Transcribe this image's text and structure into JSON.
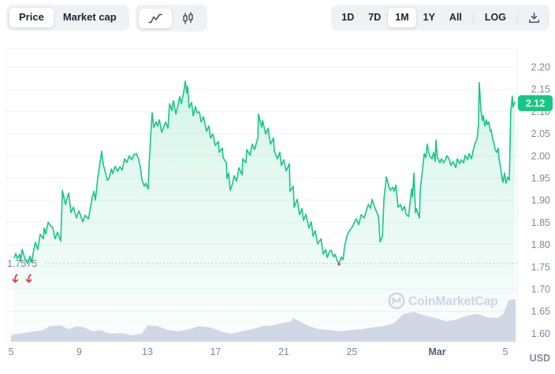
{
  "toolbar": {
    "metric_toggle": {
      "options": [
        "Price",
        "Market cap"
      ],
      "selected": "Price"
    },
    "chart_type_toggle": {
      "options": [
        "line",
        "candlestick"
      ],
      "selected": "line",
      "icons": [
        "line-chart-icon",
        "candlestick-icon"
      ]
    },
    "range_toggle": {
      "options": [
        "1D",
        "7D",
        "1M",
        "1Y",
        "All"
      ],
      "selected": "1M",
      "log_label": "LOG",
      "download_icon": "download-icon"
    }
  },
  "watermark": {
    "text": "CoinMarketCap",
    "logo": "coinmarketcap-logo"
  },
  "chart_data": {
    "type": "line",
    "unit_label": "USD",
    "last_price": "2.12",
    "min_annotation": {
      "label": "1.7575",
      "value": 1.7575
    },
    "y_axis": {
      "min": 1.6,
      "max": 2.2,
      "step": 0.05,
      "unit": "USD",
      "tick_labels": [
        "2.20",
        "2.15",
        "2.10",
        "2.05",
        "2.00",
        "1.95",
        "1.90",
        "1.85",
        "1.80",
        "1.75",
        "1.70",
        "1.65",
        "1.60"
      ]
    },
    "x_axis": {
      "unit": "days since Feb 5",
      "ticks": [
        {
          "t": 0,
          "label": "5",
          "bold": false
        },
        {
          "t": 4,
          "label": "9",
          "bold": false
        },
        {
          "t": 8,
          "label": "13",
          "bold": false
        },
        {
          "t": 12,
          "label": "17",
          "bold": false
        },
        {
          "t": 16,
          "label": "21",
          "bold": false
        },
        {
          "t": 20,
          "label": "25",
          "bold": false
        },
        {
          "t": 25,
          "label": "Mar",
          "bold": true
        },
        {
          "t": 29,
          "label": "5",
          "bold": false
        }
      ]
    },
    "colors": {
      "line": "#16c784",
      "badge": "#16c784",
      "badge_text": "#ffffff",
      "volume": "#ccd3e2",
      "grid": "#f0f2f5",
      "axis_text": "#808a9d",
      "bold_axis_text": "#555f73",
      "red": "#ea3943",
      "dotted": "#bfc6d2",
      "watermark": "#cdd4e2"
    },
    "dip_markers": {
      "t_positions": [
        0.25,
        1.05
      ],
      "touch_dot_t": 19.24
    },
    "price_series": [
      [
        0.19,
        1.771
      ],
      [
        0.28,
        1.78
      ],
      [
        0.37,
        1.768
      ],
      [
        0.51,
        1.778
      ],
      [
        0.56,
        1.762
      ],
      [
        0.65,
        1.789
      ],
      [
        0.79,
        1.771
      ],
      [
        0.97,
        1.7575
      ],
      [
        1.11,
        1.774
      ],
      [
        1.2,
        1.76
      ],
      [
        1.34,
        1.789
      ],
      [
        1.43,
        1.805
      ],
      [
        1.57,
        1.789
      ],
      [
        1.71,
        1.823
      ],
      [
        1.9,
        1.813
      ],
      [
        1.94,
        1.837
      ],
      [
        2.04,
        1.824
      ],
      [
        2.18,
        1.85
      ],
      [
        2.27,
        1.845
      ],
      [
        2.45,
        1.837
      ],
      [
        2.59,
        1.813
      ],
      [
        2.73,
        1.828
      ],
      [
        2.92,
        1.808
      ],
      [
        3.01,
        1.922
      ],
      [
        3.19,
        1.89
      ],
      [
        3.38,
        1.916
      ],
      [
        3.52,
        1.872
      ],
      [
        3.66,
        1.884
      ],
      [
        3.84,
        1.86
      ],
      [
        3.98,
        1.876
      ],
      [
        4.21,
        1.851
      ],
      [
        4.35,
        1.866
      ],
      [
        4.54,
        1.858
      ],
      [
        4.77,
        1.907
      ],
      [
        4.86,
        1.92
      ],
      [
        4.95,
        1.9
      ],
      [
        5.09,
        1.95
      ],
      [
        5.18,
        1.975
      ],
      [
        5.32,
        2.01
      ],
      [
        5.41,
        1.98
      ],
      [
        5.55,
        1.96
      ],
      [
        5.65,
        1.945
      ],
      [
        5.74,
        1.948
      ],
      [
        5.88,
        1.97
      ],
      [
        5.97,
        1.96
      ],
      [
        6.11,
        1.976
      ],
      [
        6.25,
        1.965
      ],
      [
        6.39,
        1.975
      ],
      [
        6.52,
        1.968
      ],
      [
        6.66,
        1.993
      ],
      [
        6.8,
        1.985
      ],
      [
        6.94,
        2.0
      ],
      [
        7.08,
        1.991
      ],
      [
        7.22,
        2.003
      ],
      [
        7.36,
        2.005
      ],
      [
        7.5,
        1.99
      ],
      [
        7.59,
        1.973
      ],
      [
        7.68,
        1.946
      ],
      [
        7.82,
        1.931
      ],
      [
        7.91,
        1.938
      ],
      [
        8.05,
        1.925
      ],
      [
        8.1,
        1.978
      ],
      [
        8.19,
        2.044
      ],
      [
        8.28,
        2.097
      ],
      [
        8.37,
        2.064
      ],
      [
        8.51,
        2.076
      ],
      [
        8.6,
        2.067
      ],
      [
        8.7,
        2.081
      ],
      [
        8.84,
        2.053
      ],
      [
        8.93,
        2.062
      ],
      [
        9.07,
        2.076
      ],
      [
        9.21,
        2.062
      ],
      [
        9.3,
        2.117
      ],
      [
        9.44,
        2.102
      ],
      [
        9.53,
        2.124
      ],
      [
        9.67,
        2.094
      ],
      [
        9.76,
        2.108
      ],
      [
        9.9,
        2.133
      ],
      [
        9.99,
        2.117
      ],
      [
        10.13,
        2.143
      ],
      [
        10.22,
        2.168
      ],
      [
        10.32,
        2.141
      ],
      [
        10.36,
        2.156
      ],
      [
        10.45,
        2.108
      ],
      [
        10.59,
        2.12
      ],
      [
        10.69,
        2.09
      ],
      [
        10.82,
        2.111
      ],
      [
        10.92,
        2.097
      ],
      [
        11.05,
        2.099
      ],
      [
        11.15,
        2.076
      ],
      [
        11.29,
        2.088
      ],
      [
        11.47,
        2.055
      ],
      [
        11.61,
        2.067
      ],
      [
        11.7,
        2.04
      ],
      [
        11.84,
        2.049
      ],
      [
        11.98,
        2.023
      ],
      [
        12.17,
        2.032
      ],
      [
        12.21,
        2.008
      ],
      [
        12.4,
        2.017
      ],
      [
        12.44,
        1.996
      ],
      [
        12.63,
        1.984
      ],
      [
        12.67,
        1.949
      ],
      [
        12.77,
        1.961
      ],
      [
        12.86,
        1.922
      ],
      [
        13.0,
        1.938
      ],
      [
        13.09,
        1.955
      ],
      [
        13.23,
        1.943
      ],
      [
        13.37,
        1.973
      ],
      [
        13.55,
        1.957
      ],
      [
        13.6,
        1.993
      ],
      [
        13.78,
        1.984
      ],
      [
        13.83,
        2.014
      ],
      [
        14.02,
        2.001
      ],
      [
        14.15,
        2.026
      ],
      [
        14.29,
        2.014
      ],
      [
        14.48,
        2.04
      ],
      [
        14.52,
        2.094
      ],
      [
        14.71,
        2.064
      ],
      [
        14.76,
        2.079
      ],
      [
        14.94,
        2.049
      ],
      [
        15.08,
        2.062
      ],
      [
        15.22,
        2.026
      ],
      [
        15.4,
        2.04
      ],
      [
        15.45,
        2.01
      ],
      [
        15.63,
        1.993
      ],
      [
        15.77,
        2.008
      ],
      [
        15.86,
        1.978
      ],
      [
        16.0,
        1.991
      ],
      [
        16.14,
        1.966
      ],
      [
        16.33,
        1.982
      ],
      [
        16.37,
        1.92
      ],
      [
        16.56,
        1.931
      ],
      [
        16.61,
        1.884
      ],
      [
        16.79,
        1.902
      ],
      [
        16.93,
        1.867
      ],
      [
        17.07,
        1.881
      ],
      [
        17.16,
        1.854
      ],
      [
        17.3,
        1.868
      ],
      [
        17.48,
        1.837
      ],
      [
        17.62,
        1.851
      ],
      [
        17.72,
        1.819
      ],
      [
        17.85,
        1.831
      ],
      [
        17.99,
        1.801
      ],
      [
        18.18,
        1.813
      ],
      [
        18.32,
        1.778
      ],
      [
        18.46,
        1.789
      ],
      [
        18.55,
        1.771
      ],
      [
        18.69,
        1.784
      ],
      [
        18.78,
        1.787
      ],
      [
        18.92,
        1.772
      ],
      [
        19.01,
        1.778
      ],
      [
        19.15,
        1.762
      ],
      [
        19.24,
        1.7575
      ],
      [
        19.38,
        1.772
      ],
      [
        19.48,
        1.766
      ],
      [
        19.57,
        1.796
      ],
      [
        19.71,
        1.819
      ],
      [
        19.85,
        1.831
      ],
      [
        20.03,
        1.84
      ],
      [
        20.17,
        1.852
      ],
      [
        20.26,
        1.858
      ],
      [
        20.4,
        1.845
      ],
      [
        20.54,
        1.867
      ],
      [
        20.72,
        1.86
      ],
      [
        20.86,
        1.878
      ],
      [
        20.96,
        1.89
      ],
      [
        21.09,
        1.882
      ],
      [
        21.19,
        1.902
      ],
      [
        21.33,
        1.884
      ],
      [
        21.47,
        1.872
      ],
      [
        21.56,
        1.863
      ],
      [
        21.65,
        1.806
      ],
      [
        21.79,
        1.819
      ],
      [
        21.88,
        1.902
      ],
      [
        22.02,
        1.952
      ],
      [
        22.16,
        1.931
      ],
      [
        22.25,
        1.922
      ],
      [
        22.39,
        1.929
      ],
      [
        22.48,
        1.92
      ],
      [
        22.58,
        1.934
      ],
      [
        22.71,
        1.884
      ],
      [
        22.85,
        1.89
      ],
      [
        22.95,
        1.877
      ],
      [
        23.08,
        1.886
      ],
      [
        23.18,
        1.868
      ],
      [
        23.32,
        1.863
      ],
      [
        23.5,
        1.925
      ],
      [
        23.55,
        1.907
      ],
      [
        23.64,
        1.961
      ],
      [
        23.73,
        1.872
      ],
      [
        23.78,
        1.881
      ],
      [
        23.96,
        1.86
      ],
      [
        24.01,
        1.925
      ],
      [
        24.19,
        1.984
      ],
      [
        24.24,
        2.005
      ],
      [
        24.33,
        1.996
      ],
      [
        24.42,
        2.026
      ],
      [
        24.47,
        2.014
      ],
      [
        24.56,
        2.0
      ],
      [
        24.7,
        1.993
      ],
      [
        24.79,
        2.008
      ],
      [
        24.89,
        1.987
      ],
      [
        24.93,
        2.035
      ],
      [
        25.02,
        1.996
      ],
      [
        25.16,
        1.984
      ],
      [
        25.25,
        1.993
      ],
      [
        25.39,
        1.984
      ],
      [
        25.58,
        2.0
      ],
      [
        25.72,
        1.991
      ],
      [
        25.81,
        1.978
      ],
      [
        25.95,
        1.987
      ],
      [
        26.09,
        1.973
      ],
      [
        26.18,
        1.993
      ],
      [
        26.32,
        1.982
      ],
      [
        26.41,
        1.991
      ],
      [
        26.55,
        1.984
      ],
      [
        26.64,
        2.001
      ],
      [
        26.78,
        1.991
      ],
      [
        26.87,
        2.005
      ],
      [
        27.01,
        1.993
      ],
      [
        27.1,
        2.01
      ],
      [
        27.24,
        2.03
      ],
      [
        27.34,
        2.037
      ],
      [
        27.43,
        2.072
      ],
      [
        27.47,
        2.165
      ],
      [
        27.57,
        2.102
      ],
      [
        27.66,
        2.079
      ],
      [
        27.71,
        2.09
      ],
      [
        27.8,
        2.067
      ],
      [
        27.89,
        2.081
      ],
      [
        27.94,
        2.07
      ],
      [
        28.03,
        2.076
      ],
      [
        28.12,
        2.055
      ],
      [
        28.17,
        2.058
      ],
      [
        28.26,
        2.037
      ],
      [
        28.35,
        2.026
      ],
      [
        28.4,
        2.014
      ],
      [
        28.49,
        2.008
      ],
      [
        28.58,
        2.017
      ],
      [
        28.63,
        1.993
      ],
      [
        28.72,
        1.975
      ],
      [
        28.81,
        1.949
      ],
      [
        28.86,
        1.94
      ],
      [
        28.95,
        1.961
      ],
      [
        29.04,
        1.938
      ],
      [
        29.14,
        1.952
      ],
      [
        29.23,
        1.945
      ],
      [
        29.32,
        2.1
      ],
      [
        29.41,
        2.134
      ],
      [
        29.46,
        2.11
      ],
      [
        29.55,
        2.121
      ]
    ],
    "volume_series_relative": [
      [
        0.0,
        0.15
      ],
      [
        0.74,
        0.2
      ],
      [
        1.9,
        0.27
      ],
      [
        2.27,
        0.36
      ],
      [
        2.92,
        0.38
      ],
      [
        3.38,
        0.29
      ],
      [
        3.84,
        0.36
      ],
      [
        4.3,
        0.33
      ],
      [
        4.77,
        0.24
      ],
      [
        5.23,
        0.27
      ],
      [
        5.83,
        0.18
      ],
      [
        6.43,
        0.2
      ],
      [
        7.08,
        0.15
      ],
      [
        7.68,
        0.18
      ],
      [
        8.0,
        0.38
      ],
      [
        8.6,
        0.36
      ],
      [
        9.21,
        0.27
      ],
      [
        9.85,
        0.24
      ],
      [
        10.45,
        0.29
      ],
      [
        11.05,
        0.36
      ],
      [
        11.7,
        0.33
      ],
      [
        12.31,
        0.24
      ],
      [
        12.91,
        0.18
      ],
      [
        13.55,
        0.24
      ],
      [
        14.15,
        0.29
      ],
      [
        14.76,
        0.36
      ],
      [
        15.4,
        0.38
      ],
      [
        15.77,
        0.42
      ],
      [
        16.42,
        0.47
      ],
      [
        16.56,
        0.55
      ],
      [
        17.02,
        0.45
      ],
      [
        17.48,
        0.36
      ],
      [
        18.08,
        0.29
      ],
      [
        18.73,
        0.27
      ],
      [
        19.33,
        0.24
      ],
      [
        19.94,
        0.27
      ],
      [
        20.58,
        0.29
      ],
      [
        21.19,
        0.33
      ],
      [
        21.79,
        0.36
      ],
      [
        22.43,
        0.42
      ],
      [
        23.03,
        0.64
      ],
      [
        23.64,
        0.69
      ],
      [
        24.28,
        0.6
      ],
      [
        24.89,
        0.55
      ],
      [
        25.49,
        0.47
      ],
      [
        26.14,
        0.51
      ],
      [
        26.73,
        0.6
      ],
      [
        27.34,
        0.64
      ],
      [
        27.98,
        0.56
      ],
      [
        28.58,
        0.55
      ],
      [
        28.91,
        0.65
      ],
      [
        29.18,
        0.96
      ],
      [
        29.5,
        0.98
      ],
      [
        29.6,
        1.0
      ]
    ]
  }
}
